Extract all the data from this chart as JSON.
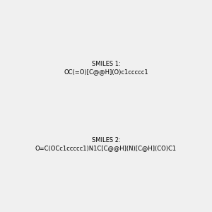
{
  "smiles_1": "OC(=O)[C@@H](O)c1ccccc1",
  "smiles_2": "O=C(OCc1ccccc1)N1C[C@@H](N)[C@H](CO)C1",
  "background_color": "#f0f0f0",
  "title": "",
  "figsize": [
    3.0,
    3.0
  ],
  "dpi": 100
}
